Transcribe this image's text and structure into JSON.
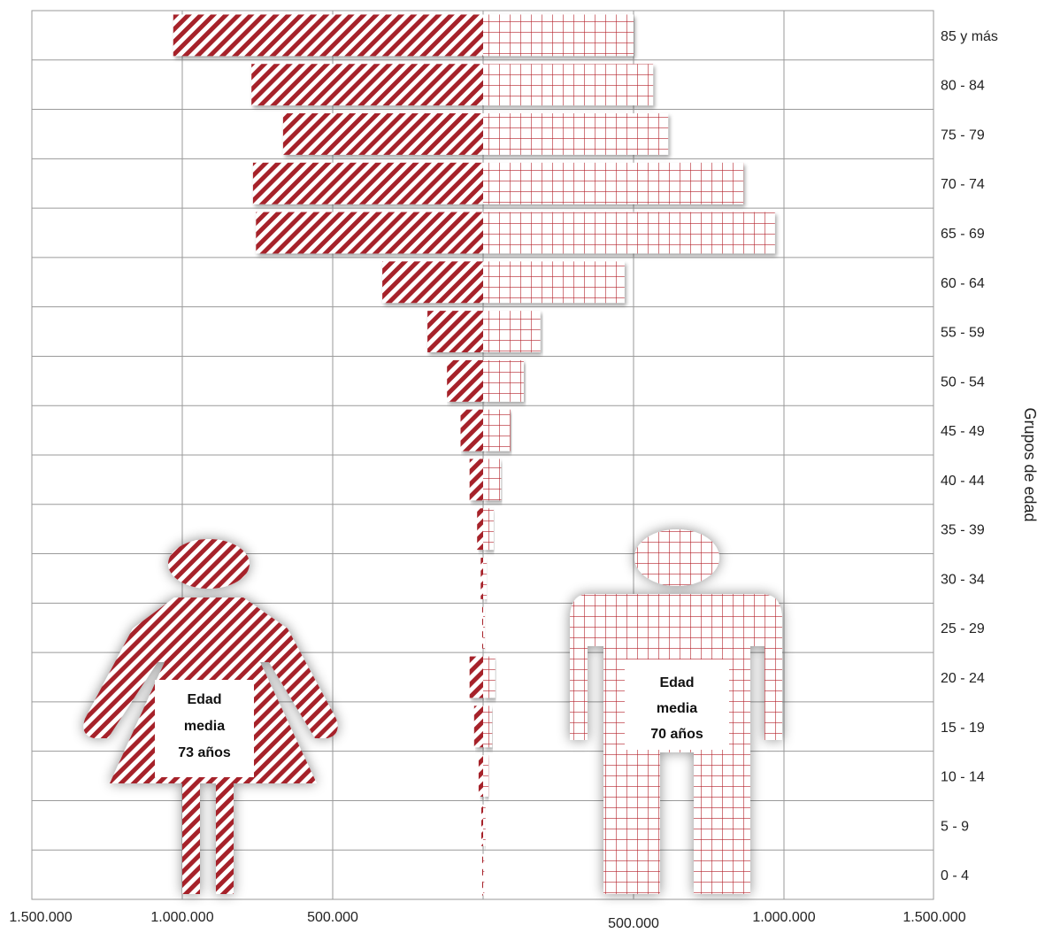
{
  "chart_data": {
    "type": "bar",
    "orientation": "horizontal",
    "subtype": "population-pyramid",
    "ylabel": "Grupos de edad",
    "categories": [
      "85 y más",
      "80 - 84",
      "75 - 79",
      "70 - 74",
      "65 - 69",
      "60 - 64",
      "55 - 59",
      "50 - 54",
      "45 - 49",
      "40 - 44",
      "35 - 39",
      "30 - 34",
      "25 - 29",
      "20 - 24",
      "15 - 19",
      "10 - 14",
      "5 - 9",
      "0 - 4"
    ],
    "series": [
      {
        "key": "women",
        "side": "left",
        "pattern": "diagonal-stripes",
        "values": [
          1030000,
          770000,
          665000,
          765000,
          755000,
          335000,
          185000,
          120000,
          75000,
          45000,
          20000,
          8000,
          3000,
          45000,
          30000,
          15000,
          6000,
          3000
        ]
      },
      {
        "key": "men",
        "side": "right",
        "pattern": "grid",
        "values": [
          500000,
          565000,
          615000,
          865000,
          970000,
          470000,
          190000,
          135000,
          90000,
          60000,
          35000,
          12000,
          6000,
          40000,
          30000,
          18000,
          8000,
          4000
        ]
      }
    ],
    "xlim": [
      -1500000,
      1500000
    ],
    "xticks": [
      -1500000,
      -1000000,
      -500000,
      500000,
      1000000,
      1500000
    ],
    "xtick_labels": [
      "1.500.000",
      "1.000.000",
      "500.000",
      "500.000",
      "1.000.000",
      "1.500.000"
    ],
    "grid": true,
    "annotations": {
      "women": [
        "Edad",
        "media",
        "73 años"
      ],
      "men": [
        "Edad",
        "media",
        "70 años"
      ]
    },
    "colors": {
      "bar": "#a6222a",
      "bar_bg": "#ffffff",
      "grid": "#9a9a9a"
    }
  }
}
